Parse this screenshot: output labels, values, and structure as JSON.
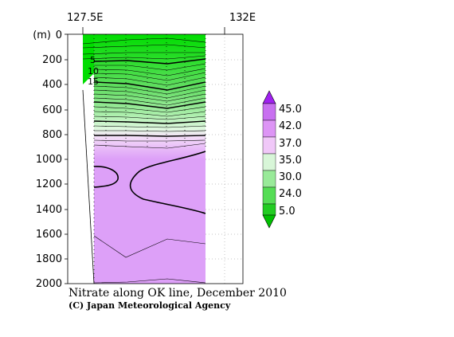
{
  "chart_data": {
    "type": "heatmap",
    "title": "Nitrate along OK line, December 2010",
    "credit": "(C) Japan Meteorological Agency",
    "xlabel": "",
    "ylabel": "(m)",
    "x_ticks": [
      "127.5E",
      "132E"
    ],
    "x_range": [
      127.5,
      132.8
    ],
    "y_ticks": [
      0,
      200,
      400,
      600,
      800,
      1000,
      1200,
      1400,
      1600,
      1800,
      2000
    ],
    "y_range": [
      0,
      2000
    ],
    "y_inverted": true,
    "contour_labels": [
      "5",
      "10",
      "15"
    ],
    "colorbar": {
      "labels": [
        "45.0",
        "42.0",
        "37.0",
        "35.0",
        "30.0",
        "24.0",
        "5.0"
      ],
      "colors": [
        "#a020f0",
        "#c870f0",
        "#e6aaf5",
        "#f3d3f5",
        "#b8f0b8",
        "#70e070",
        "#20c820"
      ]
    },
    "colors": {
      "green_high": "#00dd00",
      "green_mid": "#66e066",
      "green_light": "#c8f5c8",
      "purple_light": "#f0d8f8",
      "purple_mid": "#e0a8f8",
      "purple_deep": "#dda0f8"
    }
  }
}
